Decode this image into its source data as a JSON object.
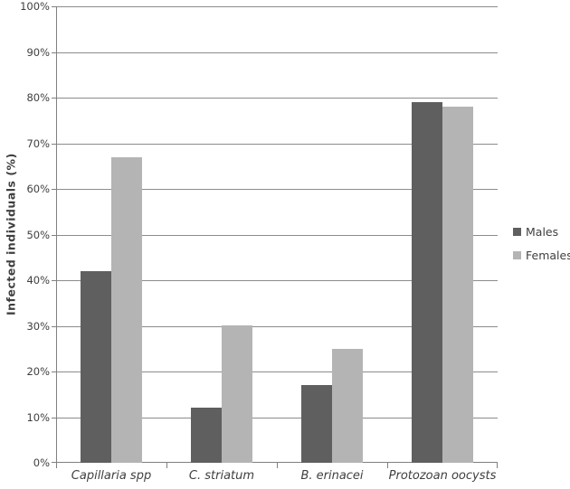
{
  "chart_data": {
    "type": "bar",
    "title": "",
    "xlabel": "",
    "ylabel": "Infected individuals (%)",
    "ylim": [
      0,
      100
    ],
    "ytick_step": 10,
    "yticks": [
      "0%",
      "10%",
      "20%",
      "30%",
      "40%",
      "50%",
      "60%",
      "70%",
      "80%",
      "90%",
      "100%"
    ],
    "categories": [
      "Capillaria spp",
      "C. striatum",
      "B. erinacei",
      "Protozoan oocysts"
    ],
    "series": [
      {
        "name": "Males",
        "color": "#5F5F5F",
        "values": [
          42,
          12,
          17,
          79
        ]
      },
      {
        "name": "Females",
        "color": "#B4B4B4",
        "values": [
          67,
          30,
          25,
          78
        ]
      }
    ],
    "grid": true,
    "legend_position": "right",
    "colors": {
      "gridline": "#8C8C8C",
      "axis": "#808080",
      "text": "#3F3F3F",
      "background": "#FFFFFF"
    }
  }
}
